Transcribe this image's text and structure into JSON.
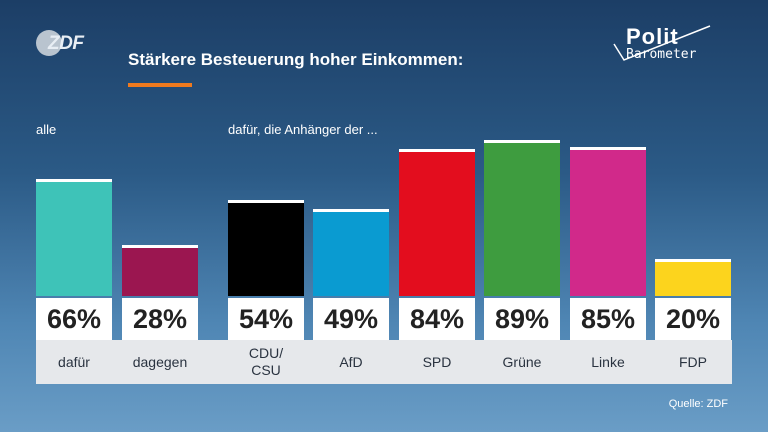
{
  "header": {
    "logo_text": "ZDF",
    "title": "Stärkere Besteuerung hoher Einkommen:",
    "brand_line1": "Polit",
    "brand_line2": "Barometer"
  },
  "groups": {
    "all_label": "alle",
    "supporters_label": "dafür, die Anhänger der ..."
  },
  "colors": {
    "accent": "#f07a1e"
  },
  "chart_data": {
    "type": "bar",
    "title": "Stärkere Besteuerung hoher Einkommen:",
    "categories": [
      "dafür",
      "dagegen",
      "CDU/\nCSU",
      "AfD",
      "SPD",
      "Grüne",
      "Linke",
      "FDP"
    ],
    "values": [
      66,
      28,
      54,
      49,
      84,
      89,
      85,
      20
    ],
    "value_labels": [
      "66%",
      "28%",
      "54%",
      "49%",
      "84%",
      "89%",
      "85%",
      "20%"
    ],
    "bar_colors": [
      "#3ec3b8",
      "#9b1650",
      "#000000",
      "#0a9bd1",
      "#e30d1e",
      "#3e9c3f",
      "#d1298a",
      "#fcd41d"
    ],
    "unit": "%",
    "ylim": [
      0,
      100
    ]
  },
  "footer": {
    "source": "Quelle: ZDF"
  }
}
